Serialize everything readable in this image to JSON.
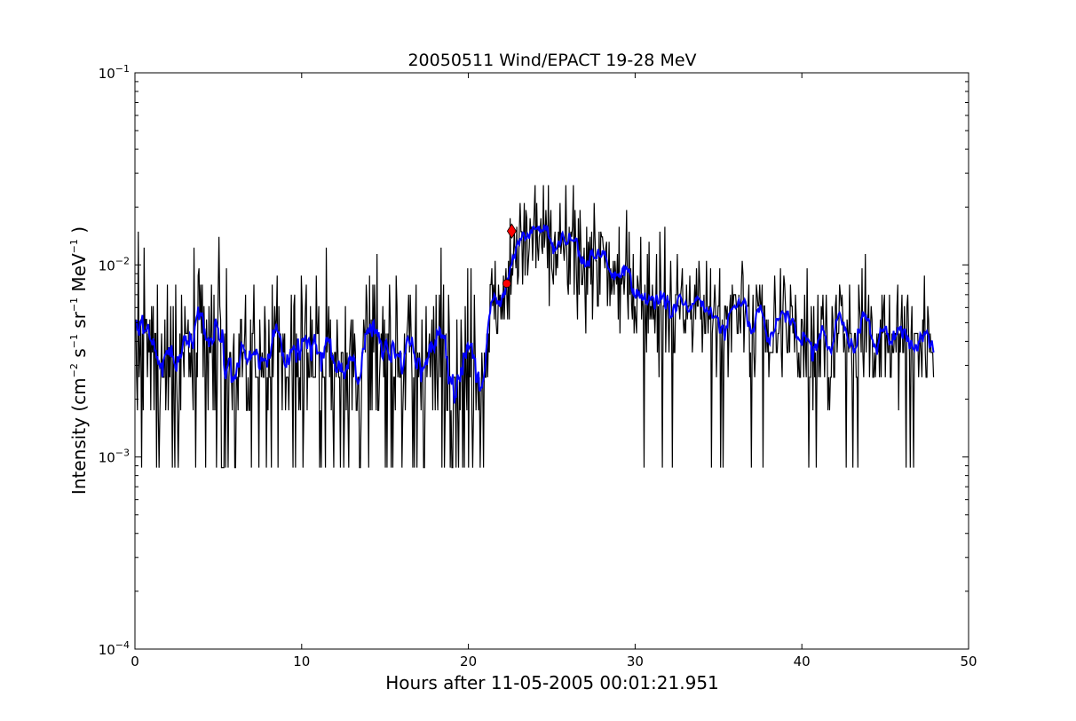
{
  "chart_data": {
    "type": "line",
    "title": "20050511 Wind/EPACT 19-28 MeV",
    "xlabel": "Hours after 11-05-2005 00:01:21.951",
    "ylabel": {
      "prefix": "Intensity (cm",
      "sup1": "−2",
      "s": " s",
      "sup2": "−1",
      "sr": " sr",
      "sup3": "−1",
      "mev": " MeV",
      "sup4": "−1",
      "suffix": " )"
    },
    "xlim": [
      0,
      50
    ],
    "ylim": [
      0.0001,
      0.1
    ],
    "yscale": "log",
    "grid": false,
    "x_ticks": [
      "0",
      "10",
      "20",
      "30",
      "40",
      "50"
    ],
    "y_ticks": [
      {
        "base": "10",
        "exp": "−4"
      },
      {
        "base": "10",
        "exp": "−3"
      },
      {
        "base": "10",
        "exp": "−2"
      },
      {
        "base": "10",
        "exp": "−1"
      }
    ],
    "series": [
      {
        "role": "raw",
        "color": "#000000",
        "x_start": 0.05,
        "x_end": 47.9,
        "n": 960,
        "quantization_levels": [
          0.00088,
          0.00175,
          0.0026,
          0.0035,
          0.0044,
          0.0052,
          0.0061,
          0.007,
          0.0079,
          0.0088,
          0.0096,
          0.0105,
          0.0114,
          0.0123,
          0.0132,
          0.014,
          0.0149,
          0.0158,
          0.0175,
          0.0193,
          0.021,
          0.026
        ],
        "profile": [
          [
            0.0,
            0.0031
          ],
          [
            5.0,
            0.0031
          ],
          [
            10.0,
            0.0033
          ],
          [
            15.0,
            0.0033
          ],
          [
            20.0,
            0.0032
          ],
          [
            21.0,
            0.0032
          ],
          [
            21.3,
            0.0058
          ],
          [
            22.3,
            0.0075
          ],
          [
            22.6,
            0.0125
          ],
          [
            24.0,
            0.013
          ],
          [
            25.0,
            0.012
          ],
          [
            27.0,
            0.0105
          ],
          [
            30.0,
            0.0078
          ],
          [
            33.0,
            0.0062
          ],
          [
            36.0,
            0.0055
          ],
          [
            40.0,
            0.0044
          ],
          [
            48.0,
            0.004
          ]
        ]
      },
      {
        "role": "smoothed",
        "color": "#0000ff",
        "window": 11
      }
    ],
    "markers": [
      {
        "name": "onset",
        "shape": "circle",
        "color": "#ff0000",
        "x": 22.3,
        "y": 0.008
      },
      {
        "name": "peak",
        "shape": "diamond",
        "color": "#ff0000",
        "x": 22.6,
        "y": 0.015
      }
    ]
  }
}
